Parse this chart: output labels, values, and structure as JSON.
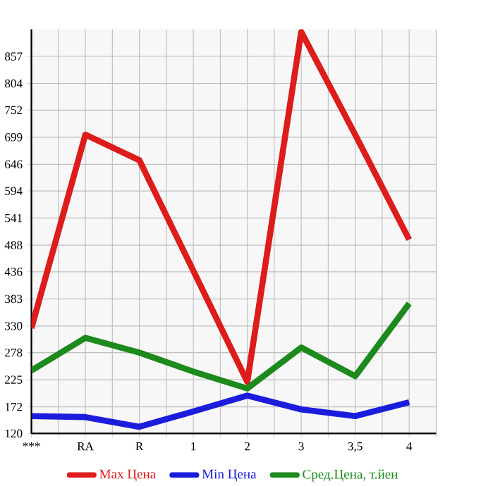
{
  "chart_data": {
    "type": "line",
    "categories": [
      "***",
      "RA",
      "R",
      "1",
      "2",
      "3",
      "3,5",
      "4"
    ],
    "series": [
      {
        "name": "Max Цена",
        "color": "#dd1c1c",
        "values": [
          326,
          704,
          654,
          438,
          221,
          905,
          704,
          499
        ]
      },
      {
        "name": "Min Цена",
        "color": "#1c1cdd",
        "values": [
          154,
          152,
          133,
          163,
          194,
          167,
          154,
          181
        ]
      },
      {
        "name": "Сред.Цена, т.йен",
        "color": "#1c8a1c",
        "values": [
          243,
          307,
          278,
          241,
          208,
          288,
          232,
          374
        ]
      }
    ],
    "ylim": [
      120,
      910
    ],
    "yticks": [
      120,
      172,
      225,
      278,
      330,
      383,
      436,
      488,
      541,
      594,
      646,
      699,
      752,
      804,
      857
    ],
    "grid": true,
    "legend": "bottom",
    "marker": "none",
    "line_style": "solid"
  }
}
